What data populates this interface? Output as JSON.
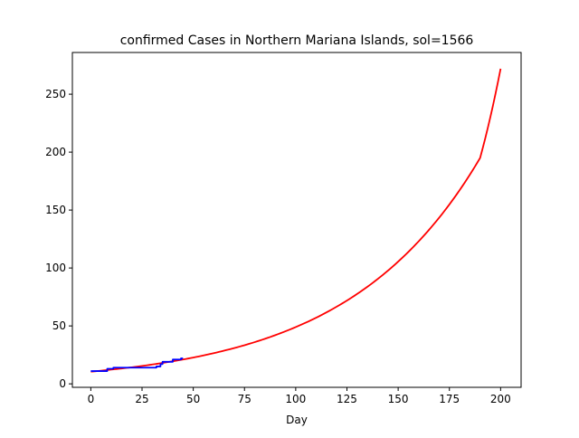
{
  "chart_data": {
    "type": "line",
    "title": "confirmed Cases in Northern Mariana Islands, sol=1566",
    "xlabel": "Day",
    "ylabel": "",
    "xlim": [
      -9,
      210
    ],
    "ylim": [
      -3,
      286
    ],
    "xticks": [
      0,
      25,
      50,
      75,
      100,
      125,
      150,
      175,
      200
    ],
    "yticks": [
      0,
      50,
      100,
      150,
      200,
      250
    ],
    "grid": false,
    "legend": "none",
    "series": [
      {
        "color": "#ff0000",
        "style": "line",
        "x": [
          0,
          10,
          20,
          30,
          40,
          50,
          60,
          70,
          80,
          90,
          100,
          110,
          120,
          130,
          140,
          150,
          160,
          170,
          180,
          190,
          200
        ],
        "y": [
          10.5,
          12.3,
          14.3,
          16.7,
          19.5,
          22.7,
          26.5,
          30.9,
          36.0,
          42.0,
          49.0,
          57.1,
          66.6,
          77.6,
          90.5,
          105.5,
          123.0,
          143.4,
          167.2,
          195.0,
          272.0
        ]
      },
      {
        "color": "#0000ff",
        "style": "step",
        "x": [
          0,
          7,
          8,
          10,
          11,
          28,
          32,
          34,
          35,
          39,
          40,
          43,
          44,
          45
        ],
        "y": [
          11,
          11,
          13,
          13,
          14,
          14,
          15,
          17,
          19,
          19,
          21,
          21,
          22,
          22
        ]
      }
    ]
  }
}
